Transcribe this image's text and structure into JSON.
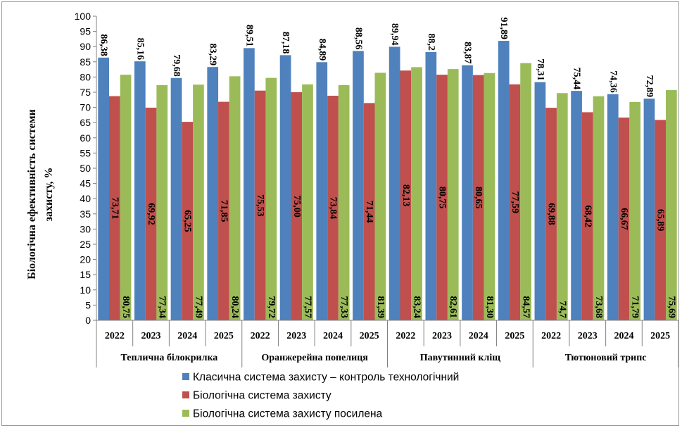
{
  "chart_data": {
    "type": "bar",
    "ylabel": "Біологічна ефективність системи захисту, %",
    "ylabel_lines": [
      "Біологічна ефективність системи",
      "захисту, %"
    ],
    "ylim": [
      0,
      100
    ],
    "ytick_step": 5,
    "yticks": [
      "0",
      "5",
      "10",
      "15",
      "20",
      "25",
      "30",
      "35",
      "40",
      "45",
      "50",
      "55",
      "60",
      "65",
      "70",
      "75",
      "80",
      "85",
      "90",
      "95",
      "100"
    ],
    "grid": false,
    "legend_position": "bottom",
    "groups": [
      "Теплична білокрилка",
      "Оранжерейна попелиця",
      "Павутинний кліщ",
      "Тютюновий трипс"
    ],
    "categories": [
      "2022",
      "2023",
      "2024",
      "2025",
      "2022",
      "2023",
      "2024",
      "2025",
      "2022",
      "2023",
      "2024",
      "2025",
      "2022",
      "2023",
      "2024",
      "2025"
    ],
    "series": [
      {
        "name": "Класична система захисту – контроль технологічний",
        "color": "#4F81BD",
        "label_position": "above",
        "values": [
          86.38,
          85.16,
          79.68,
          83.29,
          89.51,
          87.18,
          84.89,
          88.56,
          89.94,
          88.2,
          83.87,
          91.89,
          78.31,
          75.44,
          74.36,
          72.89
        ],
        "labels": [
          "86,38",
          "85,16",
          "79,68",
          "83,29",
          "89,51",
          "87,18",
          "84,89",
          "88,56",
          "89,94",
          "88,2",
          "83,87",
          "91,89",
          "78,31",
          "75,44",
          "74,36",
          "72,89"
        ]
      },
      {
        "name": "Біологічна система захисту",
        "color": "#C0504D",
        "label_position": "middle",
        "values": [
          73.71,
          69.92,
          65.25,
          71.85,
          75.53,
          75.0,
          73.84,
          71.44,
          82.13,
          80.75,
          80.65,
          77.59,
          69.88,
          68.42,
          66.67,
          65.89
        ],
        "labels": [
          "73,71",
          "69,92",
          "65,25",
          "71,85",
          "75,53",
          "75,00",
          "73,84",
          "71,44",
          "82,13",
          "80,75",
          "80,65",
          "77,59",
          "69,88",
          "68,42",
          "66,67",
          "65,89"
        ]
      },
      {
        "name": "Біологічна система захисту посилена",
        "color": "#9BBB59",
        "label_position": "bottom",
        "values": [
          80.75,
          77.34,
          77.49,
          80.24,
          79.72,
          77.57,
          77.33,
          81.39,
          83.24,
          82.61,
          81.3,
          84.57,
          74.7,
          73.68,
          71.79,
          75.69
        ],
        "labels": [
          "80,75",
          "77,34",
          "77,49",
          "80,24",
          "79,72",
          "77,57",
          "77,33",
          "81,39",
          "83,24",
          "82,61",
          "81,30",
          "84,57",
          "74,7",
          "73,68",
          "71,79",
          "75,69"
        ]
      }
    ]
  }
}
